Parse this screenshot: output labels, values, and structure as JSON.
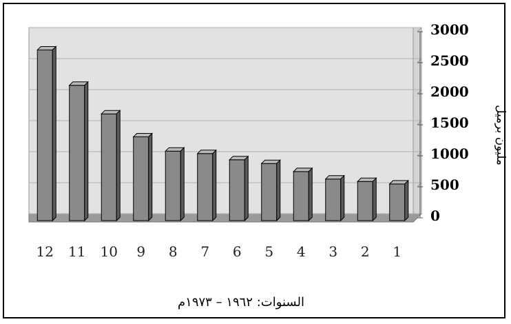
{
  "chart_data": {
    "type": "bar",
    "categories": [
      "12",
      "11",
      "10",
      "9",
      "8",
      "7",
      "6",
      "5",
      "4",
      "3",
      "2",
      "1"
    ],
    "series": [
      {
        "values": [
          2750,
          2180,
          1720,
          1350,
          1120,
          1080,
          980,
          920,
          790,
          670,
          630,
          590
        ]
      }
    ],
    "ylabel": "مليون برميل",
    "xlabel": "السنوات: ١٩٦٢ – ١٩٧٣م",
    "ylim": [
      0,
      3000
    ],
    "yticks": [
      "0",
      "500",
      "1000",
      "1500",
      "2000",
      "2500",
      "3000"
    ],
    "grid": true,
    "y_axis_side": "right",
    "colors": {
      "bar_front": "#8a8a8a",
      "bar_top": "#b8b8b8",
      "bar_side": "#5a5a5a",
      "wall": "#e2e2e2",
      "floor": "#9a9a9a"
    }
  }
}
